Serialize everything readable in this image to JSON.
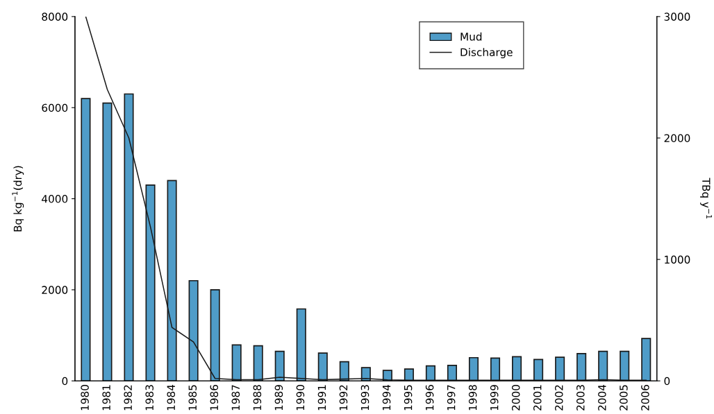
{
  "chart_data": {
    "type": "bar",
    "categories": [
      "1980",
      "1981",
      "1982",
      "1983",
      "1984",
      "1985",
      "1986",
      "1987",
      "1988",
      "1989",
      "1990",
      "1991",
      "1992",
      "1993",
      "1994",
      "1995",
      "1996",
      "1997",
      "1998",
      "1999",
      "2000",
      "2001",
      "2002",
      "2003",
      "2004",
      "2005",
      "2006"
    ],
    "series": [
      {
        "name": "Mud",
        "color": "#4f9cc8",
        "values": [
          6200,
          6100,
          6300,
          4300,
          4400,
          2200,
          2000,
          790,
          770,
          650,
          1580,
          610,
          420,
          290,
          230,
          260,
          330,
          340,
          510,
          500,
          530,
          470,
          520,
          600,
          650,
          650,
          930
        ]
      },
      {
        "name": "Discharge",
        "type": "line",
        "axis": "y2",
        "color": "#1a1a1a",
        "values": [
          3000,
          2400,
          2000,
          1270,
          440,
          320,
          20,
          10,
          10,
          30,
          20,
          10,
          15,
          20,
          8,
          5,
          5,
          5,
          5,
          5,
          5,
          5,
          5,
          5,
          10,
          5,
          5
        ]
      }
    ],
    "ylabel": "Bq kg$^{−1}$(dry)",
    "y2label": "TBq y$^{−1}$",
    "ylim": [
      0,
      8000
    ],
    "yticks": [
      0,
      2000,
      4000,
      6000,
      8000
    ],
    "y2lim": [
      0,
      3000
    ],
    "y2ticks": [
      0,
      1000,
      2000,
      3000
    ],
    "legend": "top right",
    "grid": false,
    "marker": "none",
    "line_style": "solid"
  }
}
